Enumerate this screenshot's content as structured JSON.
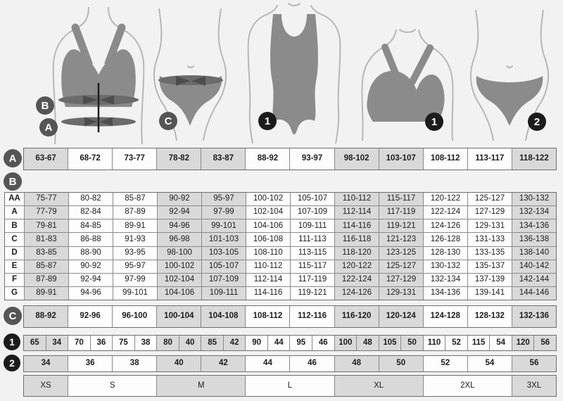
{
  "badges": {
    "a": "A",
    "b": "B",
    "c": "C",
    "one": "1",
    "two": "2"
  },
  "row_a": {
    "label": "A",
    "cells": [
      "63-67",
      "68-72",
      "73-77",
      "78-82",
      "83-87",
      "88-92",
      "93-97",
      "98-102",
      "103-107",
      "108-112",
      "113-117",
      "118-122"
    ]
  },
  "table_b": {
    "label": "B",
    "rows": [
      {
        "label": "AA",
        "cells": [
          "75-77",
          "80-82",
          "85-87",
          "90-92",
          "95-97",
          "100-102",
          "105-107",
          "110-112",
          "115-117",
          "120-122",
          "125-127",
          "130-132"
        ]
      },
      {
        "label": "A",
        "cells": [
          "77-79",
          "82-84",
          "87-89",
          "92-94",
          "97-99",
          "102-104",
          "107-109",
          "112-114",
          "117-119",
          "122-124",
          "127-129",
          "132-134"
        ]
      },
      {
        "label": "B",
        "cells": [
          "79-81",
          "84-85",
          "89-91",
          "94-96",
          "99-101",
          "104-106",
          "109-111",
          "114-116",
          "119-121",
          "124-126",
          "129-131",
          "134-136"
        ]
      },
      {
        "label": "C",
        "cells": [
          "81-83",
          "86-88",
          "91-93",
          "96-98",
          "101-103",
          "106-108",
          "111-113",
          "116-118",
          "121-123",
          "126-128",
          "131-133",
          "136-138"
        ]
      },
      {
        "label": "D",
        "cells": [
          "83-85",
          "88-90",
          "93-95",
          "98-100",
          "103-105",
          "108-110",
          "113-115",
          "118-120",
          "123-125",
          "128-130",
          "133-135",
          "138-140"
        ]
      },
      {
        "label": "E",
        "cells": [
          "85-87",
          "90-92",
          "95-97",
          "100-102",
          "105-107",
          "110-112",
          "115-117",
          "120-122",
          "125-127",
          "130-132",
          "135-137",
          "140-142"
        ]
      },
      {
        "label": "F",
        "cells": [
          "87-89",
          "92-94",
          "97-99",
          "102-104",
          "107-109",
          "112-114",
          "117-119",
          "122-124",
          "127-129",
          "132-134",
          "137-139",
          "142-144"
        ]
      },
      {
        "label": "G",
        "cells": [
          "89-91",
          "94-96",
          "99-101",
          "104-106",
          "109-111",
          "114-116",
          "119-121",
          "124-126",
          "129-131",
          "134-136",
          "139-141",
          "144-146"
        ]
      }
    ]
  },
  "row_c": {
    "label": "C",
    "cells": [
      "88-92",
      "92-96",
      "96-100",
      "100-104",
      "104-108",
      "108-112",
      "112-116",
      "116-120",
      "120-124",
      "124-128",
      "128-132",
      "132-136"
    ]
  },
  "row_1": {
    "label": "1",
    "cells": [
      "65",
      "34",
      "70",
      "36",
      "75",
      "38",
      "80",
      "40",
      "85",
      "42",
      "90",
      "44",
      "95",
      "46",
      "100",
      "48",
      "105",
      "50",
      "110",
      "52",
      "115",
      "54",
      "120",
      "56"
    ]
  },
  "row_2": {
    "label": "2",
    "cells": [
      "34",
      "36",
      "38",
      "40",
      "42",
      "44",
      "46",
      "48",
      "50",
      "52",
      "54",
      "56"
    ]
  },
  "sizes": {
    "cells": [
      {
        "label": "XS",
        "span": 1
      },
      {
        "label": "S",
        "span": 2
      },
      {
        "label": "M",
        "span": 2
      },
      {
        "label": "L",
        "span": 2
      },
      {
        "label": "XL",
        "span": 2
      },
      {
        "label": "2XL",
        "span": 2
      },
      {
        "label": "3XL",
        "span": 1
      }
    ]
  },
  "colors": {
    "cell_shaded": "#d9d9d9",
    "cell_white": "#fdfdfd",
    "border": "#8a8a8a",
    "badge_letter_bg": "#555555",
    "badge_number_bg": "#1b1b1b",
    "page_bg": "#f2f2f2",
    "garment_gray": "#8b8b8b",
    "band_gray": "#6b6b6b"
  }
}
